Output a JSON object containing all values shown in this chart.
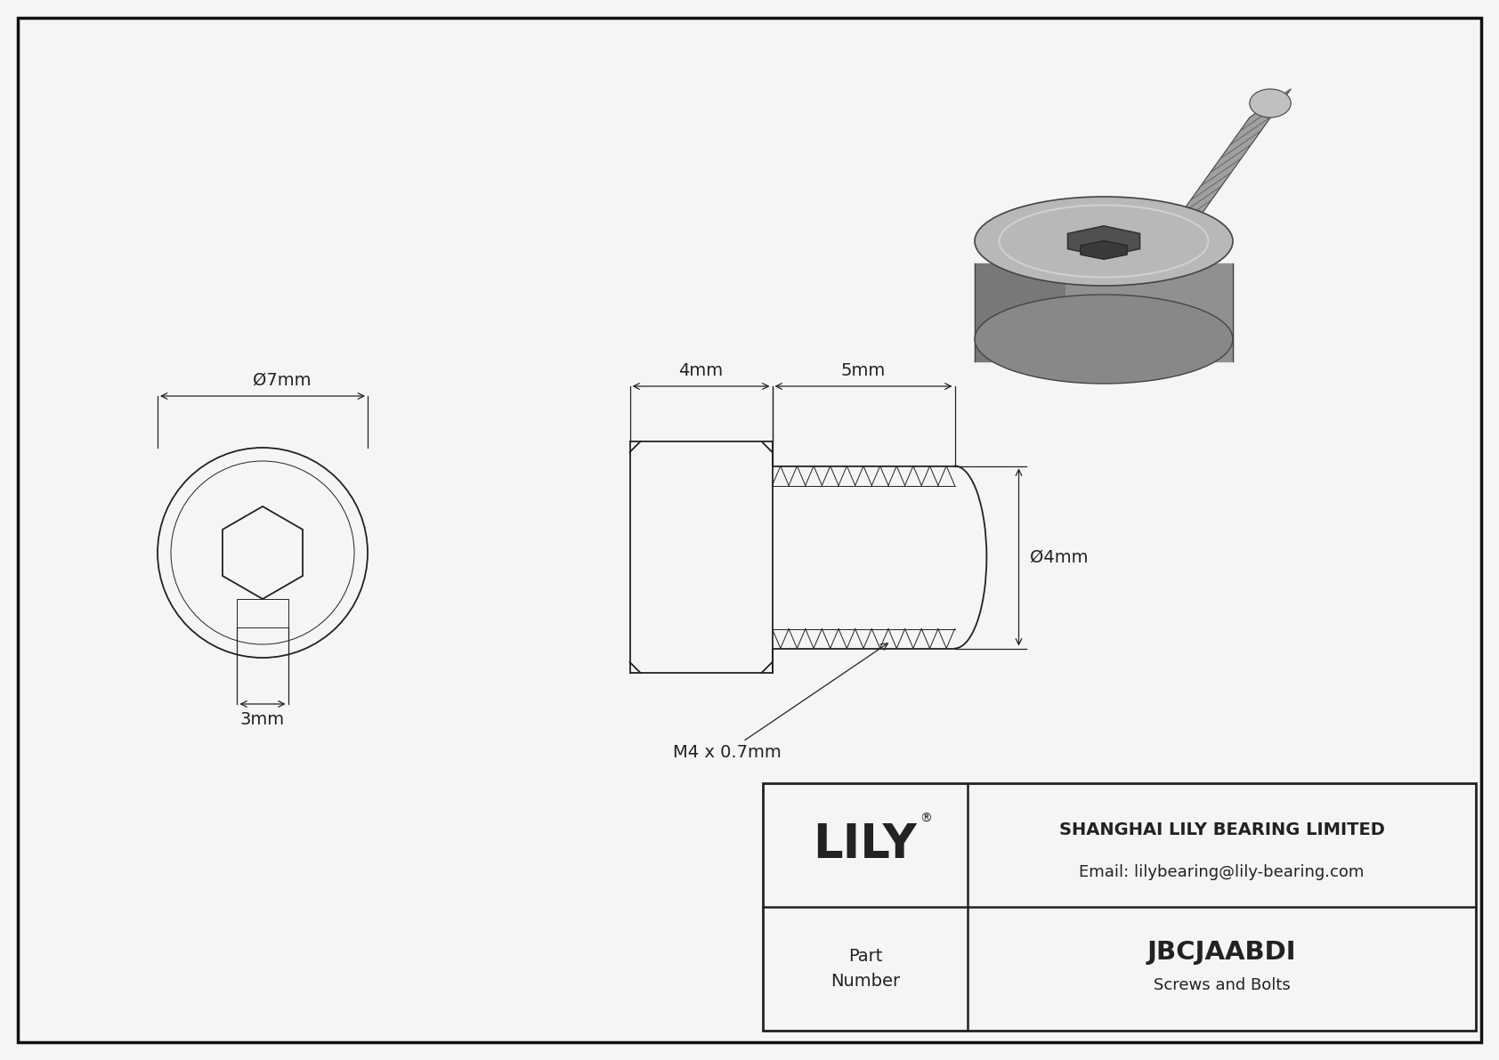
{
  "bg_color": "#f5f5f5",
  "border_color": "#111111",
  "line_color": "#222222",
  "title": "JBCJAABDI",
  "subtitle": "Screws and Bolts",
  "company": "SHANGHAI LILY BEARING LIMITED",
  "email": "Email: lilybearing@lily-bearing.com",
  "part_label_line1": "Part",
  "part_label_line2": "Number",
  "dim_7mm": "Ø7mm",
  "dim_3mm": "3mm",
  "dim_4mm_horiz": "4mm",
  "dim_5mm": "5mm",
  "dim_4mm_vert": "Ø4mm",
  "dim_thread": "M4 x 0.7mm",
  "lw": 1.3,
  "tlw": 0.7,
  "dlw": 0.9,
  "fs": 14,
  "lily_fs": 38,
  "company_fs": 13,
  "title_fs": 20,
  "subtitle_fs": 13
}
